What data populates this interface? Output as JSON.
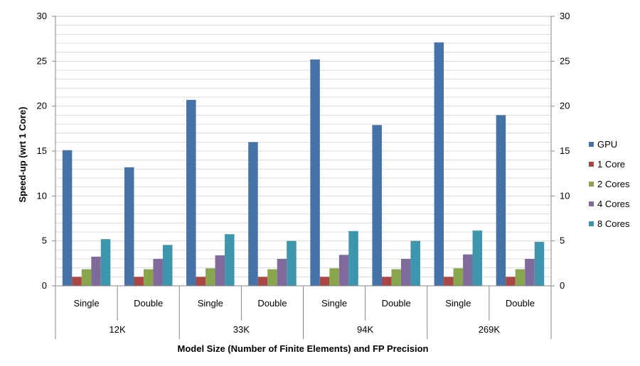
{
  "chart_data": {
    "type": "bar",
    "xlabel": "Model Size (Number of Finite Elements) and FP Precision",
    "ylabel": "Speed-up (wrt 1 Core)",
    "ylim": [
      0,
      30
    ],
    "yticks": [
      0,
      5,
      10,
      15,
      20,
      25,
      30
    ],
    "y2ticks": [
      0,
      5,
      10,
      15,
      20,
      25,
      30
    ],
    "grid": true,
    "legend_position": "right",
    "groups": [
      "12K",
      "33K",
      "94K",
      "269K"
    ],
    "subcategories": [
      "Single",
      "Double"
    ],
    "categories": [
      "Single",
      "Double",
      "Single",
      "Double",
      "Single",
      "Double",
      "Single",
      "Double"
    ],
    "series": [
      {
        "name": "GPU",
        "color": "#4572A7",
        "values": [
          15.1,
          13.2,
          20.7,
          16.0,
          25.2,
          17.9,
          27.1,
          19.0
        ]
      },
      {
        "name": "1 Core",
        "color": "#AA4643",
        "values": [
          1,
          1,
          1,
          1,
          1,
          1,
          1,
          1
        ]
      },
      {
        "name": "2 Cores",
        "color": "#89A54E",
        "values": [
          1.85,
          1.85,
          1.95,
          1.85,
          1.95,
          1.85,
          1.95,
          1.85
        ]
      },
      {
        "name": "4 Cores",
        "color": "#80699B",
        "values": [
          3.25,
          3.0,
          3.4,
          3.0,
          3.45,
          3.0,
          3.5,
          3.0
        ]
      },
      {
        "name": "8 Cores",
        "color": "#3D96AE",
        "values": [
          5.2,
          4.55,
          5.75,
          5.0,
          6.1,
          5.0,
          6.15,
          4.9
        ]
      }
    ]
  }
}
